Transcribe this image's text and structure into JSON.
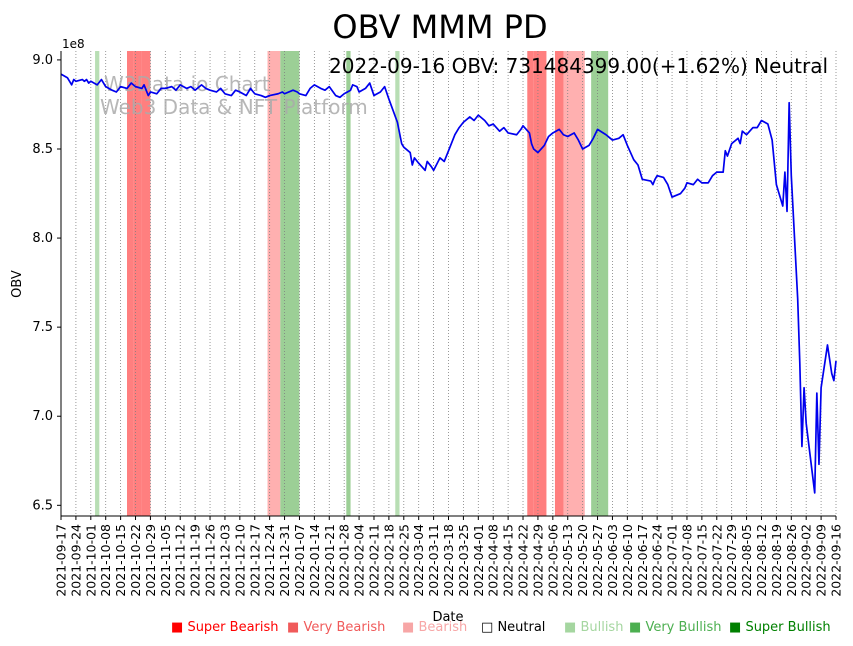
{
  "chart_data": {
    "type": "line",
    "title": "OBV MMM PD",
    "annotation": "2022-09-16 OBV: 731484399.00(+1.62%) Neutral",
    "watermark": [
      "W3Data.io Chart",
      "Web3 Data & NFT Platform"
    ],
    "xlabel": "Date",
    "ylabel": "OBV",
    "y_multiplier_label": "1e8",
    "ylim": [
      6.44,
      9.05
    ],
    "yticks": [
      6.5,
      7.0,
      7.5,
      8.0,
      8.5,
      9.0
    ],
    "ytick_labels": [
      "6.5",
      "7.0",
      "7.5",
      "8.0",
      "8.5",
      "9.0"
    ],
    "xlim": [
      "2021-09-17",
      "2022-09-16"
    ],
    "xtick_labels": [
      "2021-09-17",
      "2021-09-24",
      "2021-10-01",
      "2021-10-08",
      "2021-10-15",
      "2021-10-22",
      "2021-10-29",
      "2021-11-05",
      "2021-11-12",
      "2021-11-19",
      "2021-11-26",
      "2021-12-03",
      "2021-12-10",
      "2021-12-17",
      "2021-12-24",
      "2021-12-31",
      "2022-01-07",
      "2022-01-14",
      "2022-01-21",
      "2022-01-28",
      "2022-02-04",
      "2022-02-11",
      "2022-02-18",
      "2022-02-25",
      "2022-03-04",
      "2022-03-11",
      "2022-03-18",
      "2022-03-25",
      "2022-04-01",
      "2022-04-08",
      "2022-04-15",
      "2022-04-22",
      "2022-04-29",
      "2022-05-06",
      "2022-05-13",
      "2022-05-20",
      "2022-05-27",
      "2022-06-03",
      "2022-06-10",
      "2022-06-17",
      "2022-06-24",
      "2022-07-01",
      "2022-07-08",
      "2022-07-15",
      "2022-07-22",
      "2022-07-29",
      "2022-08-05",
      "2022-08-12",
      "2022-08-19",
      "2022-08-26",
      "2022-09-02",
      "2022-09-09",
      "2022-09-16"
    ],
    "grid": "vertical dotted",
    "series": [
      {
        "color": "#0000ee",
        "points": [
          [
            "2021-09-17",
            8.92
          ],
          [
            "2021-09-20",
            8.9
          ],
          [
            "2021-09-22",
            8.86
          ],
          [
            "2021-09-23",
            8.89
          ],
          [
            "2021-09-24",
            8.88
          ],
          [
            "2021-09-27",
            8.89
          ],
          [
            "2021-09-28",
            8.88
          ],
          [
            "2021-09-29",
            8.89
          ],
          [
            "2021-09-30",
            8.87
          ],
          [
            "2021-10-01",
            8.88
          ],
          [
            "2021-10-04",
            8.86
          ],
          [
            "2021-10-06",
            8.89
          ],
          [
            "2021-10-08",
            8.85
          ],
          [
            "2021-10-11",
            8.83
          ],
          [
            "2021-10-13",
            8.82
          ],
          [
            "2021-10-15",
            8.85
          ],
          [
            "2021-10-18",
            8.84
          ],
          [
            "2021-10-20",
            8.87
          ],
          [
            "2021-10-22",
            8.85
          ],
          [
            "2021-10-25",
            8.84
          ],
          [
            "2021-10-26",
            8.86
          ],
          [
            "2021-10-27",
            8.83
          ],
          [
            "2021-10-28",
            8.8
          ],
          [
            "2021-10-29",
            8.82
          ],
          [
            "2021-11-01",
            8.81
          ],
          [
            "2021-11-03",
            8.84
          ],
          [
            "2021-11-05",
            8.84
          ],
          [
            "2021-11-08",
            8.85
          ],
          [
            "2021-11-10",
            8.83
          ],
          [
            "2021-11-12",
            8.86
          ],
          [
            "2021-11-15",
            8.84
          ],
          [
            "2021-11-17",
            8.85
          ],
          [
            "2021-11-19",
            8.83
          ],
          [
            "2021-11-22",
            8.86
          ],
          [
            "2021-11-24",
            8.84
          ],
          [
            "2021-11-26",
            8.83
          ],
          [
            "2021-11-29",
            8.82
          ],
          [
            "2021-12-01",
            8.84
          ],
          [
            "2021-12-03",
            8.81
          ],
          [
            "2021-12-06",
            8.8
          ],
          [
            "2021-12-08",
            8.83
          ],
          [
            "2021-12-10",
            8.82
          ],
          [
            "2021-12-13",
            8.8
          ],
          [
            "2021-12-15",
            8.84
          ],
          [
            "2021-12-17",
            8.81
          ],
          [
            "2021-12-20",
            8.8
          ],
          [
            "2021-12-22",
            8.79
          ],
          [
            "2021-12-24",
            8.8
          ],
          [
            "2021-12-28",
            8.81
          ],
          [
            "2021-12-30",
            8.82
          ],
          [
            "2021-12-31",
            8.81
          ],
          [
            "2022-01-04",
            8.83
          ],
          [
            "2022-01-06",
            8.82
          ],
          [
            "2022-01-07",
            8.81
          ],
          [
            "2022-01-10",
            8.8
          ],
          [
            "2022-01-12",
            8.84
          ],
          [
            "2022-01-14",
            8.86
          ],
          [
            "2022-01-17",
            8.84
          ],
          [
            "2022-01-19",
            8.83
          ],
          [
            "2022-01-21",
            8.85
          ],
          [
            "2022-01-24",
            8.8
          ],
          [
            "2022-01-26",
            8.79
          ],
          [
            "2022-01-28",
            8.81
          ],
          [
            "2022-01-31",
            8.83
          ],
          [
            "2022-02-01",
            8.86
          ],
          [
            "2022-02-03",
            8.85
          ],
          [
            "2022-02-04",
            8.82
          ],
          [
            "2022-02-07",
            8.84
          ],
          [
            "2022-02-09",
            8.87
          ],
          [
            "2022-02-11",
            8.8
          ],
          [
            "2022-02-14",
            8.82
          ],
          [
            "2022-02-16",
            8.85
          ],
          [
            "2022-02-18",
            8.78
          ],
          [
            "2022-02-22",
            8.65
          ],
          [
            "2022-02-24",
            8.53
          ],
          [
            "2022-02-25",
            8.51
          ],
          [
            "2022-02-28",
            8.48
          ],
          [
            "2022-03-01",
            8.41
          ],
          [
            "2022-03-02",
            8.45
          ],
          [
            "2022-03-04",
            8.42
          ],
          [
            "2022-03-07",
            8.38
          ],
          [
            "2022-03-08",
            8.43
          ],
          [
            "2022-03-10",
            8.4
          ],
          [
            "2022-03-11",
            8.38
          ],
          [
            "2022-03-14",
            8.45
          ],
          [
            "2022-03-16",
            8.43
          ],
          [
            "2022-03-18",
            8.49
          ],
          [
            "2022-03-21",
            8.58
          ],
          [
            "2022-03-23",
            8.62
          ],
          [
            "2022-03-25",
            8.65
          ],
          [
            "2022-03-28",
            8.68
          ],
          [
            "2022-03-30",
            8.66
          ],
          [
            "2022-04-01",
            8.69
          ],
          [
            "2022-04-04",
            8.66
          ],
          [
            "2022-04-06",
            8.63
          ],
          [
            "2022-04-08",
            8.64
          ],
          [
            "2022-04-11",
            8.6
          ],
          [
            "2022-04-13",
            8.62
          ],
          [
            "2022-04-15",
            8.59
          ],
          [
            "2022-04-19",
            8.58
          ],
          [
            "2022-04-21",
            8.61
          ],
          [
            "2022-04-22",
            8.63
          ],
          [
            "2022-04-25",
            8.59
          ],
          [
            "2022-04-26",
            8.53
          ],
          [
            "2022-04-27",
            8.5
          ],
          [
            "2022-04-29",
            8.48
          ],
          [
            "2022-05-02",
            8.52
          ],
          [
            "2022-05-04",
            8.57
          ],
          [
            "2022-05-06",
            8.59
          ],
          [
            "2022-05-09",
            8.61
          ],
          [
            "2022-05-11",
            8.58
          ],
          [
            "2022-05-13",
            8.57
          ],
          [
            "2022-05-16",
            8.59
          ],
          [
            "2022-05-18",
            8.55
          ],
          [
            "2022-05-20",
            8.5
          ],
          [
            "2022-05-23",
            8.52
          ],
          [
            "2022-05-25",
            8.56
          ],
          [
            "2022-05-27",
            8.61
          ],
          [
            "2022-05-31",
            8.58
          ],
          [
            "2022-06-02",
            8.56
          ],
          [
            "2022-06-03",
            8.55
          ],
          [
            "2022-06-06",
            8.56
          ],
          [
            "2022-06-08",
            8.58
          ],
          [
            "2022-06-10",
            8.52
          ],
          [
            "2022-06-13",
            8.44
          ],
          [
            "2022-06-15",
            8.41
          ],
          [
            "2022-06-17",
            8.33
          ],
          [
            "2022-06-21",
            8.32
          ],
          [
            "2022-06-22",
            8.3
          ],
          [
            "2022-06-23",
            8.33
          ],
          [
            "2022-06-24",
            8.35
          ],
          [
            "2022-06-27",
            8.34
          ],
          [
            "2022-06-29",
            8.3
          ],
          [
            "2022-07-01",
            8.23
          ],
          [
            "2022-07-05",
            8.25
          ],
          [
            "2022-07-07",
            8.28
          ],
          [
            "2022-07-08",
            8.31
          ],
          [
            "2022-07-11",
            8.3
          ],
          [
            "2022-07-13",
            8.33
          ],
          [
            "2022-07-15",
            8.31
          ],
          [
            "2022-07-18",
            8.31
          ],
          [
            "2022-07-20",
            8.35
          ],
          [
            "2022-07-22",
            8.37
          ],
          [
            "2022-07-25",
            8.37
          ],
          [
            "2022-07-26",
            8.49
          ],
          [
            "2022-07-27",
            8.46
          ],
          [
            "2022-07-29",
            8.53
          ],
          [
            "2022-08-01",
            8.56
          ],
          [
            "2022-08-02",
            8.53
          ],
          [
            "2022-08-03",
            8.6
          ],
          [
            "2022-08-05",
            8.58
          ],
          [
            "2022-08-08",
            8.62
          ],
          [
            "2022-08-10",
            8.62
          ],
          [
            "2022-08-12",
            8.66
          ],
          [
            "2022-08-15",
            8.64
          ],
          [
            "2022-08-17",
            8.55
          ],
          [
            "2022-08-19",
            8.3
          ],
          [
            "2022-08-22",
            8.18
          ],
          [
            "2022-08-23",
            8.37
          ],
          [
            "2022-08-24",
            8.15
          ],
          [
            "2022-08-25",
            8.76
          ],
          [
            "2022-08-26",
            8.35
          ],
          [
            "2022-08-29",
            7.66
          ],
          [
            "2022-08-30",
            7.3
          ],
          [
            "2022-08-31",
            6.83
          ],
          [
            "2022-09-01",
            7.16
          ],
          [
            "2022-09-02",
            6.96
          ],
          [
            "2022-09-06",
            6.57
          ],
          [
            "2022-09-07",
            7.13
          ],
          [
            "2022-09-08",
            6.73
          ],
          [
            "2022-09-09",
            7.16
          ],
          [
            "2022-09-12",
            7.4
          ],
          [
            "2022-09-14",
            7.24
          ],
          [
            "2022-09-15",
            7.2
          ],
          [
            "2022-09-16",
            7.31
          ]
        ]
      }
    ],
    "signal_bands": [
      {
        "start": "2021-10-03",
        "end": "2021-10-05",
        "level": "Bullish"
      },
      {
        "start": "2021-10-18",
        "end": "2021-10-21",
        "level": "Very Bearish"
      },
      {
        "start": "2021-10-21",
        "end": "2021-10-25",
        "level": "Very Bearish"
      },
      {
        "start": "2021-10-25",
        "end": "2021-10-29",
        "level": "Very Bearish"
      },
      {
        "start": "2021-12-23",
        "end": "2021-12-29",
        "level": "Bearish"
      },
      {
        "start": "2021-12-29",
        "end": "2022-01-07",
        "level": "Very Bullish"
      },
      {
        "start": "2022-01-29",
        "end": "2022-01-31",
        "level": "Very Bullish"
      },
      {
        "start": "2022-02-21",
        "end": "2022-02-23",
        "level": "Bullish"
      },
      {
        "start": "2022-04-24",
        "end": "2022-04-27",
        "level": "Very Bearish"
      },
      {
        "start": "2022-04-27",
        "end": "2022-05-03",
        "level": "Very Bearish"
      },
      {
        "start": "2022-05-07",
        "end": "2022-05-11",
        "level": "Very Bearish"
      },
      {
        "start": "2022-05-11",
        "end": "2022-05-21",
        "level": "Bearish"
      },
      {
        "start": "2022-05-24",
        "end": "2022-06-01",
        "level": "Very Bullish"
      }
    ],
    "legend": {
      "position": "bottom-right",
      "entries": [
        {
          "label": "Super Bearish",
          "color": "#ff0000"
        },
        {
          "label": "Very Bearish",
          "color": "#f05a5a"
        },
        {
          "label": "Bearish",
          "color": "#f7a6a6"
        },
        {
          "label": "Neutral",
          "color": "#000000"
        },
        {
          "label": "Bullish",
          "color": "#a5d6a0"
        },
        {
          "label": "Very Bullish",
          "color": "#4caf50"
        },
        {
          "label": "Super Bullish",
          "color": "#008000"
        }
      ]
    },
    "band_colors": {
      "Super Bearish": "#ff4040",
      "Very Bearish": "#ff7f7f",
      "Bearish": "#ffb0b0",
      "Bullish": "#b8deb4",
      "Very Bullish": "#9ccf96",
      "Super Bullish": "#4caf50"
    }
  }
}
